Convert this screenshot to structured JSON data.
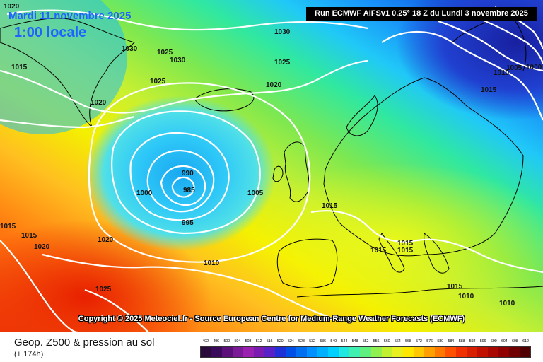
{
  "header": {
    "date": "Mardi 11 novembre 2025",
    "time": "1:00 locale",
    "run": "Run ECMWF AIFSv1 0.25° 18 Z du Lundi 3 novembre 2025"
  },
  "map": {
    "copyright": "Copyright © 2025 Meteociel.fr - Source European Centre for Medium-Range Weather Forecasts (ECMWF)",
    "isobar_labels": [
      "1020",
      "1015",
      "1030",
      "1025",
      "1030",
      "1025",
      "1020",
      "1030",
      "1025",
      "1020",
      "1010",
      "1005",
      "1000",
      "1015",
      "990",
      "985",
      "1000",
      "1005",
      "995",
      "1015",
      "1010",
      "1020",
      "1025",
      "1020",
      "1015",
      "1015",
      "1015",
      "1015",
      "1015",
      "1015",
      "1010",
      "1010"
    ],
    "low_centers": [
      "985",
      "1000"
    ]
  },
  "footer": {
    "title": "Geop. Z500 & pression au sol",
    "subtitle": "(+ 174h)"
  },
  "scale": {
    "labels": [
      "492",
      "496",
      "500",
      "504",
      "508",
      "512",
      "516",
      "520",
      "524",
      "528",
      "532",
      "536",
      "540",
      "544",
      "548",
      "552",
      "556",
      "560",
      "564",
      "568",
      "572",
      "576",
      "580",
      "584",
      "588",
      "592",
      "596",
      "600",
      "604",
      "608",
      "612"
    ],
    "colors": [
      "#2a0a3a",
      "#3a0a5a",
      "#5a1078",
      "#7a1a96",
      "#9a20b0",
      "#7a1ab0",
      "#5a20c8",
      "#2030d8",
      "#0050e8",
      "#0070f0",
      "#0090ff",
      "#00b0ff",
      "#00d0ff",
      "#20e8e0",
      "#40f0b0",
      "#60f080",
      "#90f050",
      "#c0f030",
      "#e8f020",
      "#ffe800",
      "#ffc800",
      "#ffa000",
      "#ff7800",
      "#ff5000",
      "#f03000",
      "#d82000",
      "#c01000",
      "#a80800",
      "#900000",
      "#700000",
      "#500000"
    ]
  },
  "colors": {
    "isobar": "#ffffff",
    "coast": "#000000",
    "date": "#1e63ff"
  }
}
